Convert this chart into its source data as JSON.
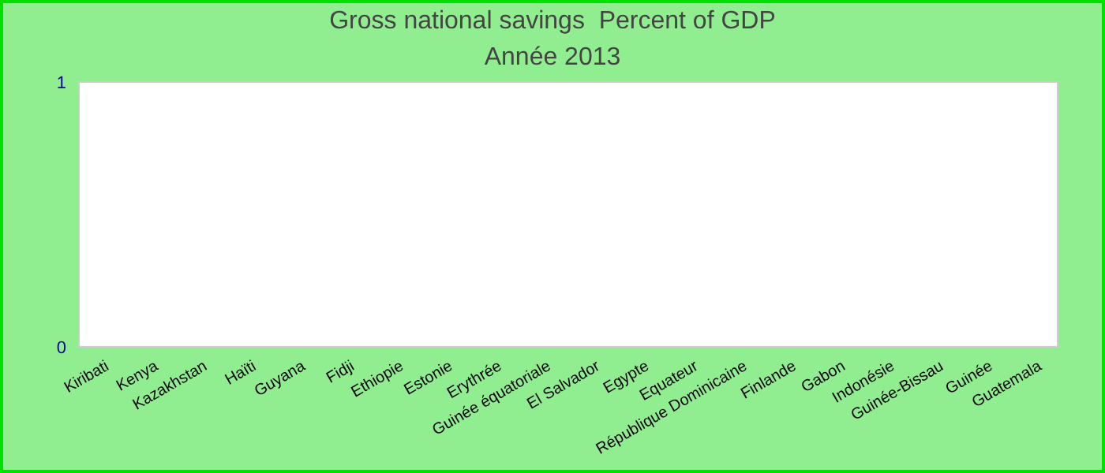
{
  "chart_data": {
    "type": "bar",
    "title": "Gross national savings  Percent of GDP",
    "subtitle": "Année 2013",
    "categories": [
      "Kiribati",
      "Kenya",
      "Kazakhstan",
      "Haïti",
      "Guyana",
      "Fidji",
      "Ethiopie",
      "Estonie",
      "Erythrée",
      "Guinée équatoriale",
      "El Salvador",
      "Egypte",
      "Equateur",
      "République Dominicaine",
      "Finlande",
      "Gabon",
      "Indonésie",
      "Guinée-Bissau",
      "Guinée",
      "Guatemala"
    ],
    "values": [
      null,
      null,
      null,
      null,
      null,
      null,
      null,
      null,
      null,
      null,
      null,
      null,
      null,
      null,
      null,
      null,
      null,
      null,
      null,
      null
    ],
    "ylim": [
      0,
      1
    ],
    "yticks": [
      0,
      1
    ],
    "grid": false,
    "legend": false
  }
}
